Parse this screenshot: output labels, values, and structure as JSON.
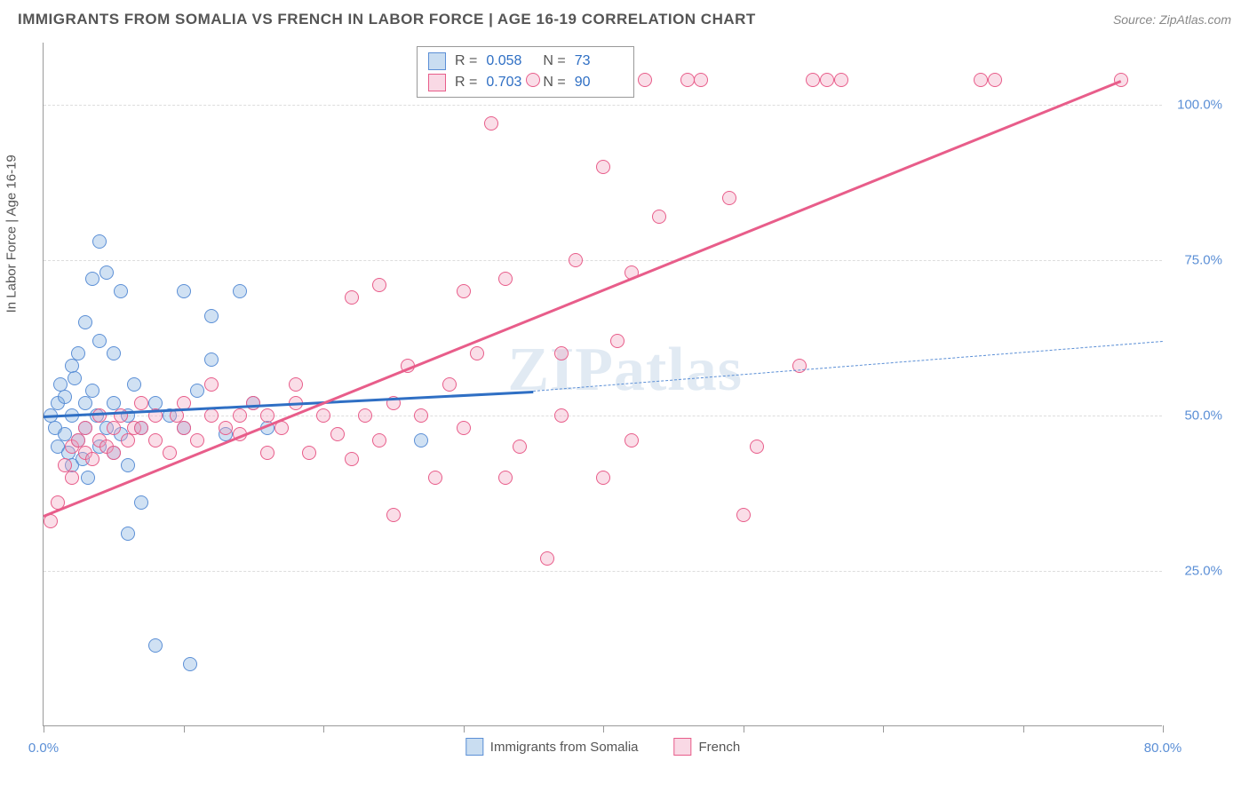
{
  "title": "IMMIGRANTS FROM SOMALIA VS FRENCH IN LABOR FORCE | AGE 16-19 CORRELATION CHART",
  "source": "Source: ZipAtlas.com",
  "watermark": "ZIPatlas",
  "y_axis_title": "In Labor Force | Age 16-19",
  "chart": {
    "type": "scatter",
    "xlim": [
      0,
      80
    ],
    "ylim": [
      0,
      110
    ],
    "x_ticks": [
      0,
      10,
      20,
      30,
      40,
      50,
      60,
      70,
      80
    ],
    "x_tick_labels": {
      "0": "0.0%",
      "80": "80.0%"
    },
    "y_ticks": [
      25,
      50,
      75,
      100
    ],
    "y_tick_labels": {
      "25": "25.0%",
      "50": "50.0%",
      "75": "75.0%",
      "100": "100.0%"
    },
    "background_color": "#ffffff",
    "grid_color": "#dddddd",
    "axis_color": "#999999",
    "tick_label_color": "#5b8fd6",
    "marker_radius": 8,
    "marker_opacity": 0.35
  },
  "series": [
    {
      "name": "Immigrants from Somalia",
      "color_fill": "#78aadc",
      "color_stroke": "#5b8fd6",
      "stats": {
        "R_label": "R =",
        "R": "0.058",
        "N_label": "N =",
        "N": "73"
      },
      "trend": {
        "slope_start": [
          0,
          50
        ],
        "solid_end": [
          35,
          54
        ],
        "dash_end": [
          80,
          62
        ],
        "line_color": "#2f6fc4",
        "line_width": 2.5
      },
      "points": [
        [
          0.5,
          50
        ],
        [
          0.8,
          48
        ],
        [
          1,
          52
        ],
        [
          1,
          45
        ],
        [
          1.2,
          55
        ],
        [
          1.5,
          47
        ],
        [
          1.5,
          53
        ],
        [
          1.8,
          44
        ],
        [
          2,
          50
        ],
        [
          2,
          58
        ],
        [
          2,
          42
        ],
        [
          2.2,
          56
        ],
        [
          2.5,
          60
        ],
        [
          2.5,
          46
        ],
        [
          2.8,
          43
        ],
        [
          3,
          52
        ],
        [
          3,
          48
        ],
        [
          3,
          65
        ],
        [
          3.2,
          40
        ],
        [
          3.5,
          54
        ],
        [
          3.5,
          72
        ],
        [
          3.8,
          50
        ],
        [
          4,
          45
        ],
        [
          4,
          62
        ],
        [
          4,
          78
        ],
        [
          4.5,
          48
        ],
        [
          4.5,
          73
        ],
        [
          5,
          52
        ],
        [
          5,
          44
        ],
        [
          5,
          60
        ],
        [
          5.5,
          47
        ],
        [
          5.5,
          70
        ],
        [
          6,
          50
        ],
        [
          6,
          42
        ],
        [
          6,
          31
        ],
        [
          6.5,
          55
        ],
        [
          7,
          48
        ],
        [
          7,
          36
        ],
        [
          8,
          52
        ],
        [
          8,
          13
        ],
        [
          9,
          50
        ],
        [
          10,
          70
        ],
        [
          10,
          48
        ],
        [
          10.5,
          10
        ],
        [
          11,
          54
        ],
        [
          12,
          59
        ],
        [
          12,
          66
        ],
        [
          13,
          47
        ],
        [
          14,
          70
        ],
        [
          15,
          52
        ],
        [
          16,
          48
        ],
        [
          27,
          46
        ]
      ]
    },
    {
      "name": "French",
      "color_fill": "#f0a0be",
      "color_stroke": "#e85d8a",
      "stats": {
        "R_label": "R =",
        "R": "0.703",
        "N_label": "N =",
        "N": "90"
      },
      "trend": {
        "slope_start": [
          0,
          34
        ],
        "solid_end": [
          77,
          104
        ],
        "line_color": "#e85d8a",
        "line_width": 3
      },
      "points": [
        [
          0.5,
          33
        ],
        [
          1,
          36
        ],
        [
          1.5,
          42
        ],
        [
          2,
          45
        ],
        [
          2,
          40
        ],
        [
          2.5,
          46
        ],
        [
          3,
          44
        ],
        [
          3,
          48
        ],
        [
          3.5,
          43
        ],
        [
          4,
          46
        ],
        [
          4,
          50
        ],
        [
          4.5,
          45
        ],
        [
          5,
          48
        ],
        [
          5,
          44
        ],
        [
          5.5,
          50
        ],
        [
          6,
          46
        ],
        [
          6.5,
          48
        ],
        [
          7,
          48
        ],
        [
          7,
          52
        ],
        [
          8,
          50
        ],
        [
          8,
          46
        ],
        [
          9,
          44
        ],
        [
          9.5,
          50
        ],
        [
          10,
          48
        ],
        [
          10,
          52
        ],
        [
          11,
          46
        ],
        [
          12,
          50
        ],
        [
          12,
          55
        ],
        [
          13,
          48
        ],
        [
          14,
          50
        ],
        [
          14,
          47
        ],
        [
          15,
          52
        ],
        [
          16,
          50
        ],
        [
          16,
          44
        ],
        [
          17,
          48
        ],
        [
          18,
          55
        ],
        [
          18,
          52
        ],
        [
          19,
          44
        ],
        [
          20,
          50
        ],
        [
          21,
          47
        ],
        [
          22,
          69
        ],
        [
          22,
          43
        ],
        [
          23,
          50
        ],
        [
          24,
          71
        ],
        [
          24,
          46
        ],
        [
          25,
          52
        ],
        [
          25,
          34
        ],
        [
          26,
          58
        ],
        [
          27,
          50
        ],
        [
          28,
          40
        ],
        [
          29,
          55
        ],
        [
          30,
          70
        ],
        [
          30,
          48
        ],
        [
          31,
          60
        ],
        [
          32,
          97
        ],
        [
          33,
          40
        ],
        [
          33,
          72
        ],
        [
          34,
          45
        ],
        [
          35,
          104
        ],
        [
          36,
          27
        ],
        [
          37,
          50
        ],
        [
          37,
          60
        ],
        [
          38,
          75
        ],
        [
          40,
          40
        ],
        [
          40,
          90
        ],
        [
          41,
          62
        ],
        [
          42,
          73
        ],
        [
          42,
          46
        ],
        [
          43,
          104
        ],
        [
          44,
          82
        ],
        [
          46,
          104
        ],
        [
          47,
          104
        ],
        [
          49,
          85
        ],
        [
          50,
          34
        ],
        [
          51,
          45
        ],
        [
          54,
          58
        ],
        [
          55,
          104
        ],
        [
          56,
          104
        ],
        [
          57,
          104
        ],
        [
          67,
          104
        ],
        [
          68,
          104
        ],
        [
          77,
          104
        ]
      ]
    }
  ],
  "bottom_legend": {
    "item1": "Immigrants from Somalia",
    "item2": "French"
  }
}
